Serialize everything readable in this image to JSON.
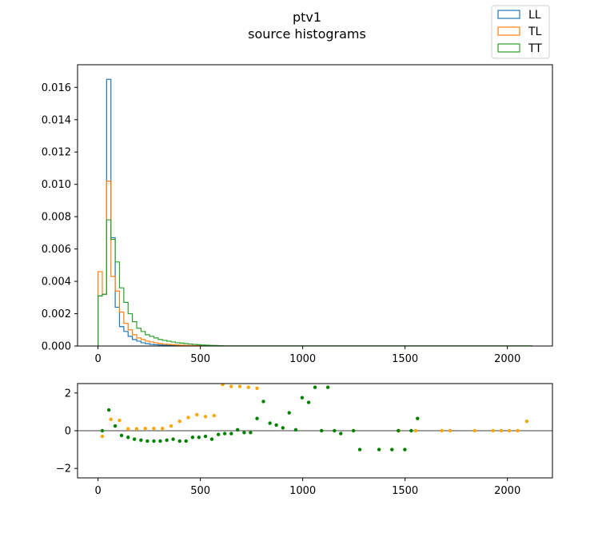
{
  "chart_data": {
    "title": "ptv1",
    "subtitle": "source histograms",
    "legend": {
      "placement": "top-right",
      "entries": [
        {
          "name": "LL",
          "color": "#1f77b4"
        },
        {
          "name": "TL",
          "color": "#ff7f0e"
        },
        {
          "name": "TT",
          "color": "#2ca02c"
        }
      ]
    },
    "top": {
      "type": "histogram",
      "xlim": [
        -100,
        2220
      ],
      "ylim": [
        0,
        0.0174
      ],
      "xticks": [
        0,
        500,
        1000,
        1500,
        2000
      ],
      "yticks": [
        0,
        0.002,
        0.004,
        0.006,
        0.008,
        0.01,
        0.012,
        0.014,
        0.016
      ],
      "ytick_labels": [
        "0.000",
        "0.002",
        "0.004",
        "0.006",
        "0.008",
        "0.010",
        "0.012",
        "0.014",
        "0.016"
      ],
      "bin_edges": [
        0,
        21,
        42,
        63,
        84,
        105,
        126,
        147,
        168,
        189,
        210,
        231,
        252,
        273,
        294,
        315,
        336,
        357,
        378,
        399,
        420,
        441,
        462,
        483,
        504,
        525,
        546,
        567,
        588,
        609,
        630,
        2120
      ],
      "series": [
        {
          "name": "LL",
          "color": "#1f77b4",
          "values": [
            0.0031,
            0.0032,
            0.0165,
            0.0067,
            0.0024,
            0.0012,
            0.0009,
            0.0006,
            0.0004,
            0.0003,
            0.0002,
            0.00015,
            0.0001,
            8e-05,
            6e-05,
            5e-05,
            4e-05,
            3e-05,
            2e-05,
            2e-05,
            1e-05,
            1e-05,
            1e-05,
            0,
            0,
            0,
            0,
            0,
            0,
            0,
            0
          ]
        },
        {
          "name": "TL",
          "color": "#ff7f0e",
          "values": [
            0.0046,
            0.0032,
            0.0102,
            0.0043,
            0.0034,
            0.0021,
            0.0014,
            0.001,
            0.0007,
            0.0005,
            0.0004,
            0.0003,
            0.00025,
            0.0002,
            0.00015,
            0.00012,
            0.0001,
            8e-05,
            6e-05,
            5e-05,
            4e-05,
            3e-05,
            2e-05,
            2e-05,
            1e-05,
            1e-05,
            0,
            0,
            0,
            0,
            0
          ]
        },
        {
          "name": "TT",
          "color": "#2ca02c",
          "values": [
            0.0031,
            0.0032,
            0.0078,
            0.0066,
            0.0052,
            0.0036,
            0.0027,
            0.002,
            0.0015,
            0.0011,
            0.0009,
            0.0007,
            0.0006,
            0.0005,
            0.0004,
            0.00035,
            0.0003,
            0.00025,
            0.0002,
            0.00018,
            0.00015,
            0.00012,
            0.0001,
            8e-05,
            6e-05,
            5e-05,
            4e-05,
            3e-05,
            2e-05,
            1e-05,
            1e-05
          ]
        }
      ]
    },
    "bottom": {
      "type": "scatter",
      "xlim": [
        -100,
        2220
      ],
      "ylim": [
        -2.5,
        2.5
      ],
      "xticks": [
        0,
        500,
        1000,
        1500,
        2000
      ],
      "yticks": [
        -2,
        0,
        2
      ],
      "reference_line": 0,
      "series": [
        {
          "name": "orange",
          "color": "#ffa500",
          "points": [
            [
              21,
              -0.3
            ],
            [
              63,
              0.6
            ],
            [
              105,
              0.55
            ],
            [
              147,
              0.1
            ],
            [
              189,
              0.1
            ],
            [
              231,
              0.12
            ],
            [
              273,
              0.12
            ],
            [
              315,
              0.12
            ],
            [
              357,
              0.25
            ],
            [
              399,
              0.5
            ],
            [
              441,
              0.7
            ],
            [
              483,
              0.85
            ],
            [
              525,
              0.75
            ],
            [
              567,
              0.8
            ],
            [
              609,
              2.45
            ],
            [
              651,
              2.35
            ],
            [
              693,
              2.35
            ],
            [
              735,
              2.3
            ],
            [
              777,
              2.25
            ],
            [
              1470,
              0
            ],
            [
              1552,
              0
            ],
            [
              1680,
              0
            ],
            [
              1720,
              0
            ],
            [
              1840,
              0
            ],
            [
              1930,
              0
            ],
            [
              1970,
              0
            ],
            [
              2010,
              0
            ],
            [
              2050,
              0
            ],
            [
              2095,
              0.5
            ]
          ]
        },
        {
          "name": "green",
          "color": "#008000",
          "points": [
            [
              21,
              0
            ],
            [
              53,
              1.1
            ],
            [
              84,
              0.25
            ],
            [
              115,
              -0.25
            ],
            [
              147,
              -0.35
            ],
            [
              178,
              -0.45
            ],
            [
              210,
              -0.5
            ],
            [
              241,
              -0.55
            ],
            [
              273,
              -0.55
            ],
            [
              304,
              -0.55
            ],
            [
              336,
              -0.5
            ],
            [
              367,
              -0.45
            ],
            [
              399,
              -0.55
            ],
            [
              430,
              -0.55
            ],
            [
              462,
              -0.35
            ],
            [
              493,
              -0.35
            ],
            [
              525,
              -0.3
            ],
            [
              556,
              -0.45
            ],
            [
              588,
              -0.2
            ],
            [
              619,
              -0.15
            ],
            [
              651,
              -0.15
            ],
            [
              682,
              0.05
            ],
            [
              714,
              -0.1
            ],
            [
              745,
              -0.1
            ],
            [
              777,
              0.65
            ],
            [
              808,
              1.55
            ],
            [
              840,
              0.4
            ],
            [
              871,
              0.3
            ],
            [
              903,
              0.15
            ],
            [
              934,
              0.95
            ],
            [
              966,
              0.05
            ],
            [
              997,
              1.75
            ],
            [
              1029,
              1.5
            ],
            [
              1060,
              2.3
            ],
            [
              1092,
              0
            ],
            [
              1123,
              2.3
            ],
            [
              1155,
              0
            ],
            [
              1186,
              -0.15
            ],
            [
              1248,
              0
            ],
            [
              1279,
              -1
            ],
            [
              1373,
              -1
            ],
            [
              1436,
              -1
            ],
            [
              1467,
              0
            ],
            [
              1499,
              -1
            ],
            [
              1530,
              0
            ],
            [
              1561,
              0.65
            ]
          ]
        }
      ]
    }
  }
}
